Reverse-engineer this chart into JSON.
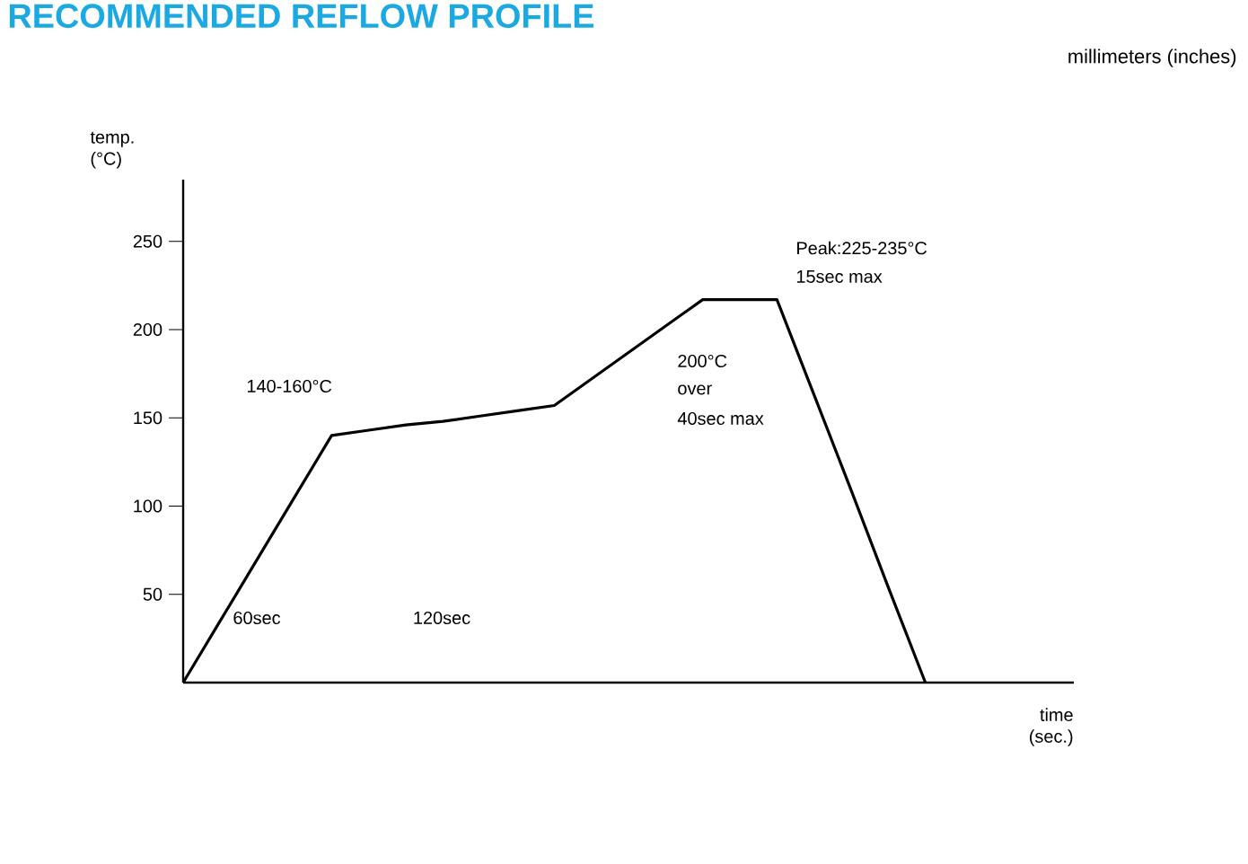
{
  "chart_data": {
    "type": "line",
    "title": "RECOMMENDED REFLOW PROFILE",
    "xlabel": "time (sec.)",
    "ylabel": "temp. (°C)",
    "categories": [
      null,
      null,
      null,
      null,
      null,
      null,
      null,
      null,
      null,
      null,
      null,
      null,
      null,
      null,
      null,
      null,
      null,
      null,
      null,
      null,
      null,
      null,
      null,
      null,
      null
    ],
    "values": [
      0,
      35,
      70,
      105,
      140,
      143,
      146,
      148,
      151,
      154,
      157,
      172,
      187,
      202,
      217,
      217,
      217,
      163,
      109,
      54,
      0,
      null,
      null,
      null,
      null
    ],
    "color": "#000000",
    "ylim": [
      0,
      285
    ],
    "yticks": [
      50,
      100,
      150,
      200,
      250
    ],
    "tick_labels": "y",
    "line_style": "solid",
    "annotations": [
      "millimeters (inches)",
      "140-160°C",
      "60sec",
      "120sec",
      "Peak:225-235°C",
      "15sec max",
      "200°C",
      "over",
      "40sec max"
    ]
  }
}
